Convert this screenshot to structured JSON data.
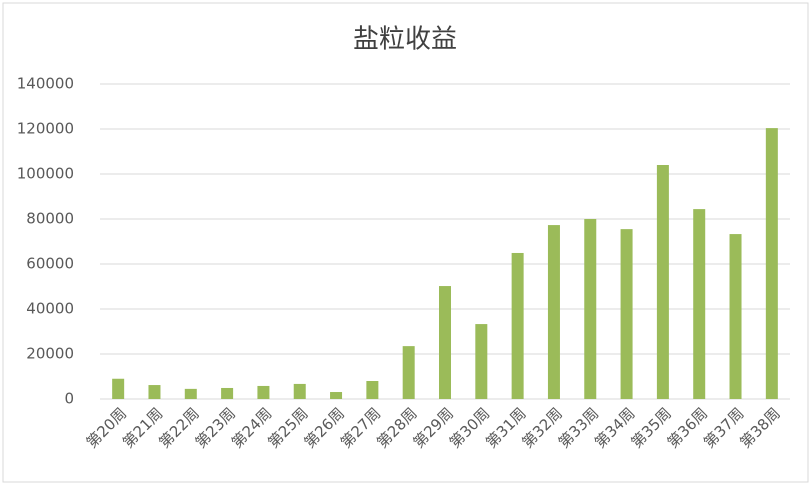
{
  "chart_data": {
    "type": "bar",
    "title": "盐粒收益",
    "categories": [
      "第20周",
      "第21周",
      "第22周",
      "第23周",
      "第24周",
      "第25周",
      "第26周",
      "第27周",
      "第28周",
      "第29周",
      "第30周",
      "第31周",
      "第32周",
      "第33周",
      "第34周",
      "第35周",
      "第36周",
      "第37周",
      "第38周"
    ],
    "values": [
      9000,
      6200,
      4500,
      4900,
      5800,
      6700,
      3100,
      8000,
      23500,
      50200,
      33300,
      64900,
      77300,
      80000,
      75500,
      104000,
      84400,
      73300,
      120400
    ],
    "color": "#9bbb59",
    "ylim": [
      0,
      140000
    ],
    "yticks": [
      0,
      20000,
      40000,
      60000,
      80000,
      100000,
      120000,
      140000
    ],
    "grid": true
  }
}
